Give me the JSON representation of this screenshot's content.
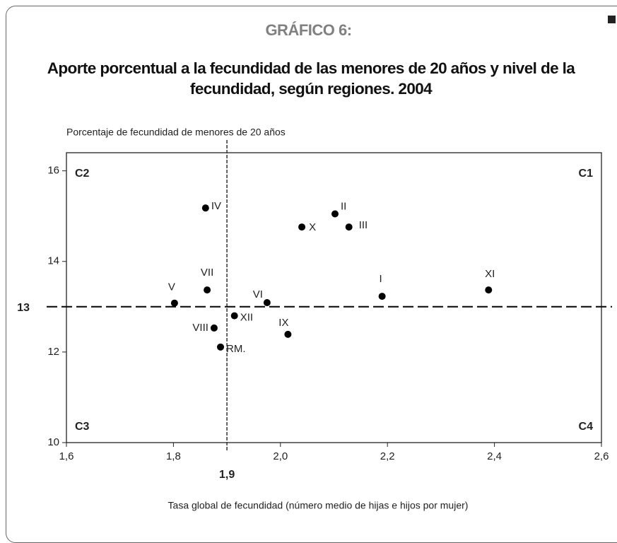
{
  "chart_data": {
    "type": "scatter",
    "title": "GRÁFICO 6:",
    "subtitle": "Aporte porcentual a la fecundidad de las menores de 20 años y nivel de la fecundidad, según regiones. 2004",
    "ylabel": "Porcentaje de fecundidad de menores de 20 años",
    "xlabel": "Tasa global de fecundidad (número medio de hijas e hijos por mujer)",
    "point_labels": [
      "IV",
      "VII",
      "V",
      "VIII",
      "RM.",
      "XII",
      "VI",
      "IX",
      "X",
      "II",
      "III",
      "I",
      "XI"
    ],
    "x": [
      1.86,
      1.863,
      1.802,
      1.876,
      1.888,
      1.914,
      1.975,
      2.014,
      2.04,
      2.102,
      2.128,
      2.19,
      2.389
    ],
    "series": [
      {
        "color": "#000000",
        "values": [
          15.18,
          13.37,
          13.08,
          12.53,
          12.11,
          12.8,
          13.09,
          12.39,
          14.76,
          15.05,
          14.76,
          13.23,
          13.37
        ]
      }
    ],
    "xlim": [
      1.6,
      2.6
    ],
    "ylim": [
      10,
      16.4
    ],
    "xticks": [
      {
        "value": 1.6,
        "label": "1,6"
      },
      {
        "value": 1.8,
        "label": "1,8"
      },
      {
        "value": 2.0,
        "label": "2,0"
      },
      {
        "value": 2.2,
        "label": "2,2"
      },
      {
        "value": 2.4,
        "label": "2,4"
      },
      {
        "value": 2.6,
        "label": "2,6"
      }
    ],
    "yticks": [
      10,
      12,
      14,
      16
    ],
    "x_reference": {
      "value": 1.9,
      "label": "1,9"
    },
    "y_reference": 13,
    "quadrants": [
      "C1",
      "C2",
      "C3",
      "C4"
    ]
  }
}
